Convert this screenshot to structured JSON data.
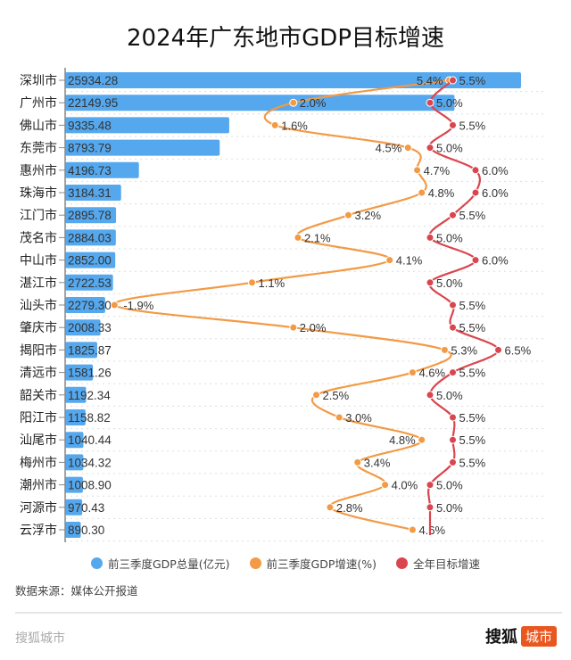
{
  "chart_data": {
    "type": "bar+line",
    "title": "2024年广东地市GDP目标增速",
    "categories": [
      "深圳市",
      "广州市",
      "佛山市",
      "东莞市",
      "惠州市",
      "珠海市",
      "江门市",
      "茂名市",
      "中山市",
      "湛江市",
      "汕头市",
      "肇庆市",
      "揭阳市",
      "清远市",
      "韶关市",
      "阳江市",
      "汕尾市",
      "梅州市",
      "潮州市",
      "河源市",
      "云浮市"
    ],
    "series": [
      {
        "name": "前三季度GDP总量(亿元)",
        "type": "bar",
        "color": "#55a8ee",
        "values": [
          25934.28,
          22149.95,
          9335.48,
          8793.79,
          4196.73,
          3184.31,
          2895.78,
          2884.03,
          2852.0,
          2722.53,
          2279.3,
          2008.33,
          1825.87,
          1581.26,
          1192.34,
          1158.82,
          1040.44,
          1034.32,
          1008.9,
          970.43,
          890.3
        ],
        "labels": [
          "25934.28",
          "22149.95",
          "9335.48",
          "8793.79",
          "4196.73",
          "3184.31",
          "2895.78",
          "2884.03",
          "2852.00",
          "2722.53",
          "2279.30",
          "2008.33",
          "1825.87",
          "1581.26",
          "1192.34",
          "1158.82",
          "1040.44",
          "1034.32",
          "1008.90",
          "970.43",
          "890.30"
        ]
      },
      {
        "name": "前三季度GDP增速(%)",
        "type": "line",
        "color": "#f39a45",
        "values": [
          5.4,
          2.0,
          1.6,
          4.5,
          4.7,
          4.8,
          3.2,
          2.1,
          4.1,
          1.1,
          -1.9,
          2.0,
          5.3,
          4.6,
          2.5,
          3.0,
          4.8,
          3.4,
          4.0,
          2.8,
          4.6
        ]
      },
      {
        "name": "全年目标增速",
        "type": "line",
        "color": "#d9464f",
        "values": [
          5.5,
          5.0,
          5.5,
          5.0,
          6.0,
          6.0,
          5.5,
          5.0,
          6.0,
          5.0,
          5.5,
          5.5,
          6.5,
          5.5,
          5.0,
          5.5,
          5.5,
          5.5,
          5.0,
          5.0,
          null
        ]
      }
    ],
    "legend_position": "bottom",
    "grid": "dotted horizontal"
  },
  "source": "数据来源：媒体公开报道",
  "footer": {
    "left": "搜狐城市",
    "brand": "搜狐",
    "badge": "城市"
  }
}
